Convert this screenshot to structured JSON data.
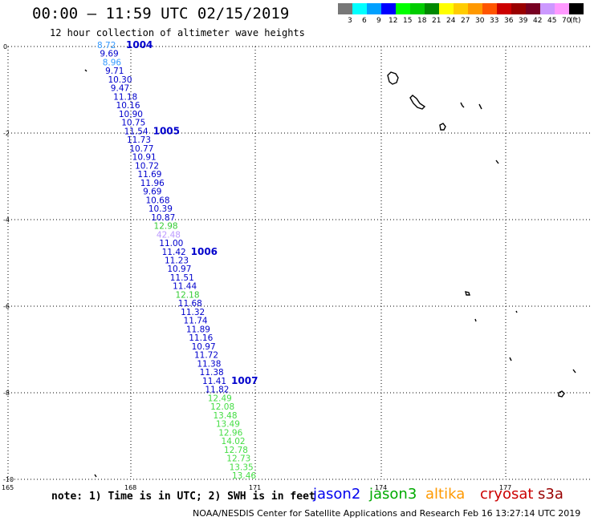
{
  "header": {
    "title": "00:00 – 11:59 UTC 02/15/2019",
    "subtitle": "12 hour collection of altimeter wave heights"
  },
  "legend": {
    "unit": "(ft)",
    "bins": [
      {
        "label": "3",
        "color": "#777777"
      },
      {
        "label": "6",
        "color": "#00ffff"
      },
      {
        "label": "9",
        "color": "#00a0ff"
      },
      {
        "label": "12",
        "color": "#0000ff"
      },
      {
        "label": "15",
        "color": "#00ff00"
      },
      {
        "label": "18",
        "color": "#00cc00"
      },
      {
        "label": "21",
        "color": "#008800"
      },
      {
        "label": "24",
        "color": "#ffff00"
      },
      {
        "label": "27",
        "color": "#ffcc00"
      },
      {
        "label": "30",
        "color": "#ff9900"
      },
      {
        "label": "33",
        "color": "#ff5500"
      },
      {
        "label": "36",
        "color": "#cc0000"
      },
      {
        "label": "39",
        "color": "#990000"
      },
      {
        "label": "42",
        "color": "#770022"
      },
      {
        "label": "45",
        "color": "#cc99ff"
      },
      {
        "label": "70",
        "color": "#ff99ff"
      },
      {
        "label": "",
        "color": "#000000"
      }
    ]
  },
  "axes": {
    "lat_ticks": [
      "0",
      "-2",
      "-4",
      "-6",
      "-8",
      "-10"
    ],
    "lon_ticks": [
      "165",
      "168",
      "171",
      "174",
      "177"
    ]
  },
  "observations": [
    {
      "v": "8.72",
      "c": "#3399ff"
    },
    {
      "v": "9.69",
      "c": "#0000cc"
    },
    {
      "v": "8.96",
      "c": "#3399ff"
    },
    {
      "v": "9.71",
      "c": "#0000cc"
    },
    {
      "v": "10.30",
      "c": "#0000cc"
    },
    {
      "v": "9.47",
      "c": "#0000cc"
    },
    {
      "v": "11.18",
      "c": "#0000cc"
    },
    {
      "v": "10.16",
      "c": "#0000cc"
    },
    {
      "v": "10.90",
      "c": "#0000cc"
    },
    {
      "v": "10.75",
      "c": "#0000cc"
    },
    {
      "v": "11.54",
      "c": "#0000cc"
    },
    {
      "v": "11.73",
      "c": "#0000cc"
    },
    {
      "v": "10.77",
      "c": "#0000cc"
    },
    {
      "v": "10.91",
      "c": "#0000cc"
    },
    {
      "v": "10.72",
      "c": "#0000cc"
    },
    {
      "v": "11.69",
      "c": "#0000cc"
    },
    {
      "v": "11.96",
      "c": "#0000cc"
    },
    {
      "v": "9.69",
      "c": "#0000cc"
    },
    {
      "v": "10.68",
      "c": "#0000cc"
    },
    {
      "v": "10.39",
      "c": "#0000cc"
    },
    {
      "v": "10.87",
      "c": "#0000cc"
    },
    {
      "v": "12.98",
      "c": "#33cc33"
    },
    {
      "v": "42.48",
      "c": "#bb99ff"
    },
    {
      "v": "11.00",
      "c": "#0000cc"
    },
    {
      "v": "11.42",
      "c": "#0000cc"
    },
    {
      "v": "11.23",
      "c": "#0000cc"
    },
    {
      "v": "10.97",
      "c": "#0000cc"
    },
    {
      "v": "11.51",
      "c": "#0000cc"
    },
    {
      "v": "11.44",
      "c": "#0000cc"
    },
    {
      "v": "12.18",
      "c": "#33cc33"
    },
    {
      "v": "11.68",
      "c": "#0000cc"
    },
    {
      "v": "11.32",
      "c": "#0000cc"
    },
    {
      "v": "11.74",
      "c": "#0000cc"
    },
    {
      "v": "11.89",
      "c": "#0000cc"
    },
    {
      "v": "11.16",
      "c": "#0000cc"
    },
    {
      "v": "10.97",
      "c": "#0000cc"
    },
    {
      "v": "11.72",
      "c": "#0000cc"
    },
    {
      "v": "11.38",
      "c": "#0000cc"
    },
    {
      "v": "11.38",
      "c": "#0000cc"
    },
    {
      "v": "11.41",
      "c": "#0000cc"
    },
    {
      "v": "11.82",
      "c": "#0000cc"
    },
    {
      "v": "12.49",
      "c": "#44dd44"
    },
    {
      "v": "12.08",
      "c": "#44dd44"
    },
    {
      "v": "13.48",
      "c": "#44dd44"
    },
    {
      "v": "13.49",
      "c": "#44dd44"
    },
    {
      "v": "12.96",
      "c": "#44dd44"
    },
    {
      "v": "14.02",
      "c": "#44dd44"
    },
    {
      "v": "12.78",
      "c": "#44dd44"
    },
    {
      "v": "12.73",
      "c": "#44dd44"
    },
    {
      "v": "13.35",
      "c": "#44dd44"
    },
    {
      "v": "13.46",
      "c": "#44dd44"
    }
  ],
  "time_labels": [
    {
      "label": "1004",
      "after_index": 0
    },
    {
      "label": "1005",
      "after_index": 10
    },
    {
      "label": "1006",
      "after_index": 24
    },
    {
      "label": "1007",
      "after_index": 39
    }
  ],
  "footer": {
    "note": "note:  1) Time is in UTC;  2) SWH is in feet",
    "satellites": [
      {
        "name": "jason2",
        "color": "#0000ee"
      },
      {
        "name": "jason3",
        "color": "#00aa00"
      },
      {
        "name": "altika",
        "color": "#ff9900"
      },
      {
        "name": "cryosat",
        "color": "#cc0000"
      },
      {
        "name": "s3a",
        "color": "#990000"
      }
    ],
    "credit": "NOAA/NESDIS Center for Satellite Applications and Research     Feb 16 13:27:14 UTC 2019"
  }
}
